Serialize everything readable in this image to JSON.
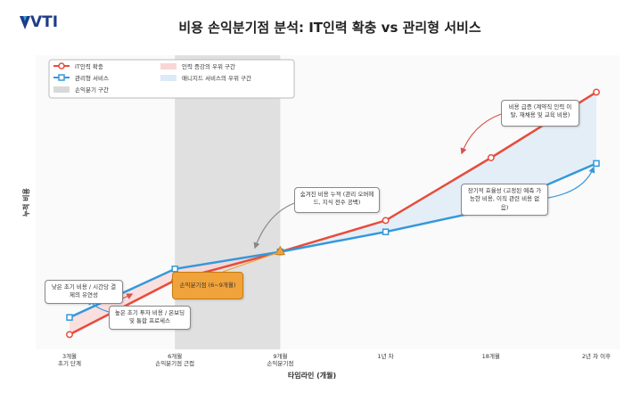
{
  "logo": "VTI",
  "chart_data": {
    "type": "line",
    "title": "비용 손익분기점 분석: IT인력 확충 vs 관리형 서비스",
    "x_label": "타임라인 (개월)",
    "y_label": "누적 비용",
    "categories": [
      "3개월\n초기 단계",
      "6개월\n손익분기점 근접",
      "9개월\n손익분기점",
      "1년 차",
      "18개월",
      "2년 차 이후"
    ],
    "series": [
      {
        "name": "IT인력 확충",
        "color": "#e74c3c",
        "marker": "circle",
        "values": [
          3,
          22,
          32,
          43,
          65,
          88
        ]
      },
      {
        "name": "관리형 서비스",
        "color": "#3498db",
        "marker": "square",
        "values": [
          9,
          26,
          32,
          39,
          47,
          63
        ]
      }
    ],
    "ylim": [
      0,
      100
    ],
    "shaded_regions": [
      {
        "label": "인력 증강의 우위 구간",
        "color": "#f9d6d5"
      },
      {
        "label": "매니지드 서비스의 우위 구간",
        "color": "#dceaf6"
      },
      {
        "label": "손익분기 구간",
        "color": "#d9d9d9"
      }
    ],
    "annotations": [
      {
        "text": "낮은 초기 비용 / 시간당 결제의 유연성"
      },
      {
        "text": "높은 초기 투자 비용 / 온보딩 및 통합 프로세스"
      },
      {
        "text": "손익분기점 (6~9개월)"
      },
      {
        "text": "숨겨진 비용 누적 (관리 오버헤드, 지식 전수 공백)"
      },
      {
        "text": "비용 급증 (계약직 인력 이탈, 재채용 및 교육 비용)"
      },
      {
        "text": "장기적 효율성 (고정된 예측 가능한 비용, 이직 관련 비용 없음)"
      }
    ]
  }
}
